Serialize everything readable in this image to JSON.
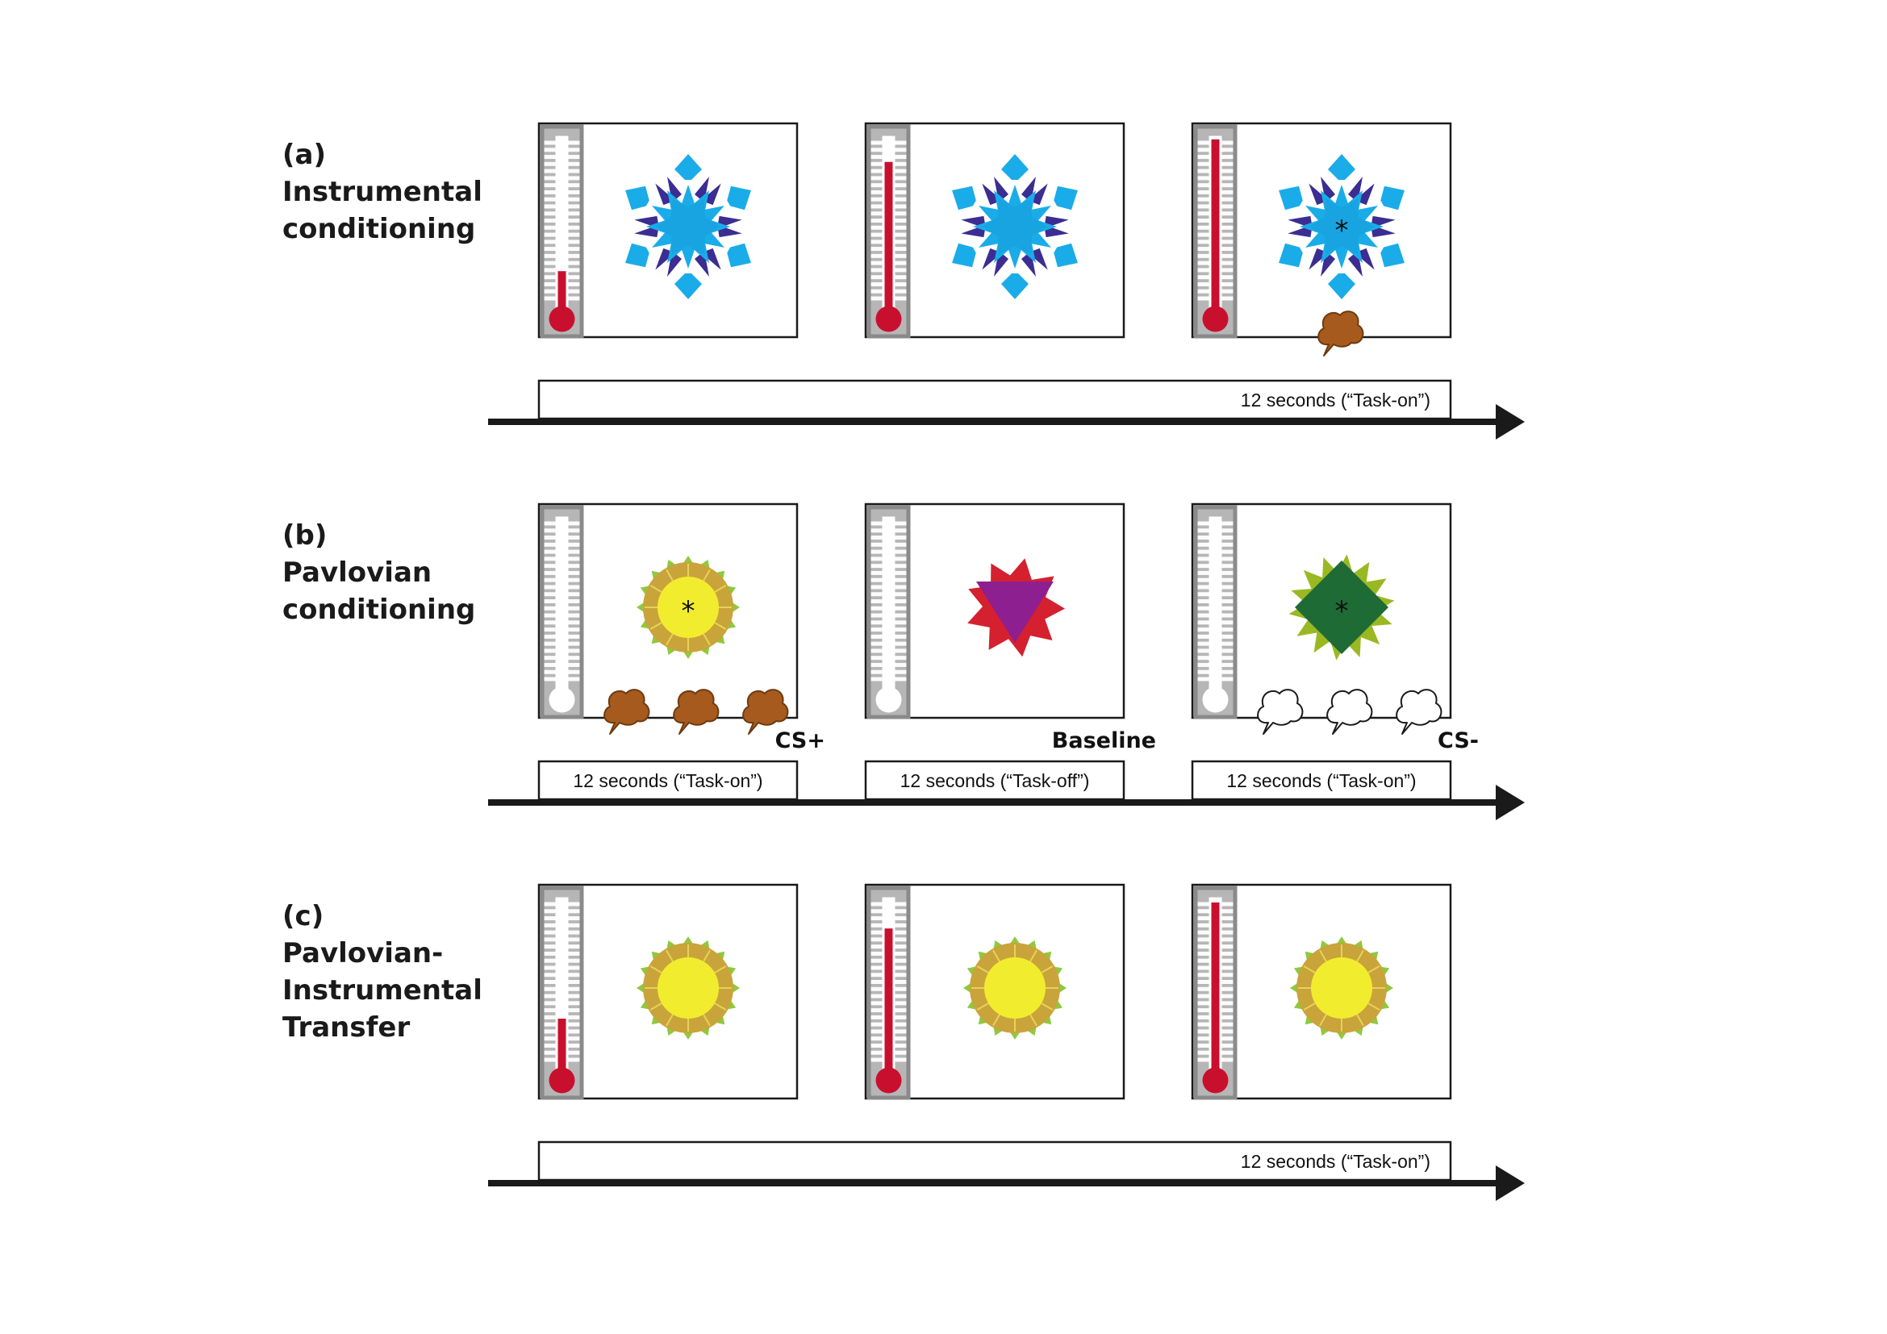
{
  "colors": {
    "mercury": "#c8102e",
    "gauge_bg": "#8a8a8a",
    "cyan": "#1aace8",
    "indigo": "#3b2d91",
    "yellow": "#f2ec2e",
    "ochre": "#c9a43a",
    "leaf_green": "#8fc93e",
    "crimson": "#d4202f",
    "purple": "#8e1f90",
    "dark_green": "#1e6b35",
    "olive": "#9ab822",
    "brown": "#a65a1d"
  },
  "rows": [
    {
      "id": "a",
      "letter": "(a)",
      "title_lines": [
        "Instrumental",
        "conditioning"
      ],
      "panels": [
        {
          "stimulus": "snowflake",
          "gauge_level": 0.22,
          "bulb": "red",
          "asterisk": false,
          "clouds": "none",
          "tag": ""
        },
        {
          "stimulus": "snowflake",
          "gauge_level": 0.85,
          "bulb": "red",
          "asterisk": false,
          "clouds": "none",
          "tag": ""
        },
        {
          "stimulus": "snowflake",
          "gauge_level": 0.98,
          "bulb": "red",
          "asterisk": true,
          "clouds": "brown-one",
          "tag": ""
        }
      ],
      "timeline_mode": "single",
      "timeline_labels": [
        "12 seconds (“Task-on”)"
      ]
    },
    {
      "id": "b",
      "letter": "(b)",
      "title_lines": [
        "Pavlovian",
        "conditioning"
      ],
      "panels": [
        {
          "stimulus": "sun",
          "gauge_level": 0,
          "bulb": "white",
          "asterisk": true,
          "clouds": "brown-three",
          "tag": "CS+"
        },
        {
          "stimulus": "triangle",
          "gauge_level": 0,
          "bulb": "white",
          "asterisk": false,
          "clouds": "none",
          "tag": "Baseline"
        },
        {
          "stimulus": "diamond",
          "gauge_level": 0,
          "bulb": "white",
          "asterisk": true,
          "clouds": "white-three",
          "tag": "CS-"
        }
      ],
      "timeline_mode": "split",
      "timeline_labels": [
        "12 seconds (“Task-on”)",
        "12 seconds (“Task-off”)",
        "12 seconds (“Task-on”)"
      ]
    },
    {
      "id": "c",
      "letter": "(c)",
      "title_lines": [
        "Pavlovian-",
        "Instrumental",
        "Transfer"
      ],
      "panels": [
        {
          "stimulus": "sun",
          "gauge_level": 0.3,
          "bulb": "red",
          "asterisk": false,
          "clouds": "none",
          "tag": ""
        },
        {
          "stimulus": "sun",
          "gauge_level": 0.82,
          "bulb": "red",
          "asterisk": false,
          "clouds": "none",
          "tag": ""
        },
        {
          "stimulus": "sun",
          "gauge_level": 0.97,
          "bulb": "red",
          "asterisk": false,
          "clouds": "none",
          "tag": ""
        }
      ],
      "timeline_mode": "single",
      "timeline_labels": [
        "12 seconds (“Task-on”)"
      ]
    }
  ]
}
